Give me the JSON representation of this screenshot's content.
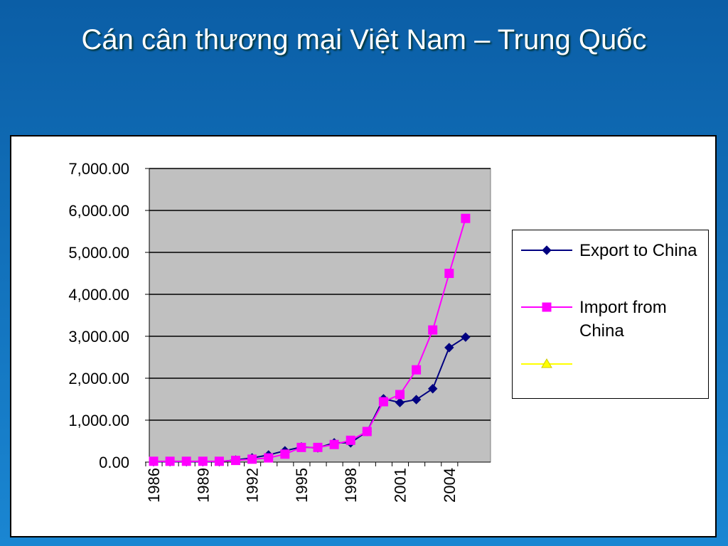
{
  "title": "Cán cân thương mại Việt Nam – Trung Quốc",
  "chart_data": {
    "type": "line",
    "categories": [
      "1986",
      null,
      null,
      "1989",
      null,
      null,
      "1992",
      null,
      null,
      "1995",
      null,
      null,
      "1998",
      null,
      null,
      "2001",
      null,
      null,
      "2004",
      null
    ],
    "series": [
      {
        "name": "Export to China",
        "color": "#000080",
        "marker": "diamond",
        "values": [
          10,
          10,
          10,
          10,
          10,
          50,
          100,
          170,
          270,
          360,
          340,
          460,
          460,
          730,
          1510,
          1420,
          1490,
          1750,
          2730,
          2980
        ]
      },
      {
        "name": "Import from China",
        "color": "#ff00ff",
        "marker": "square",
        "values": [
          20,
          20,
          20,
          20,
          20,
          40,
          70,
          100,
          190,
          350,
          350,
          420,
          520,
          730,
          1440,
          1610,
          2200,
          3150,
          4500,
          5810
        ]
      },
      {
        "name": null,
        "color": "#ffff00",
        "marker": "triangle",
        "values": [
          null,
          null,
          null,
          null,
          null,
          null,
          null,
          null,
          null,
          null,
          null,
          null,
          null,
          null,
          null,
          null,
          null,
          null,
          null,
          null
        ]
      }
    ],
    "ylim": [
      0,
      7000
    ],
    "yticks": [
      {
        "value": 0,
        "label": "0.00"
      },
      {
        "value": 1000,
        "label": "1,000.00"
      },
      {
        "value": 2000,
        "label": "2,000.00"
      },
      {
        "value": 3000,
        "label": "3,000.00"
      },
      {
        "value": 4000,
        "label": "4,000.00"
      },
      {
        "value": 5000,
        "label": "5,000.00"
      },
      {
        "value": 6000,
        "label": "6,000.00"
      },
      {
        "value": 7000,
        "label": "7,000.00"
      }
    ],
    "grid": true,
    "legend": "right"
  }
}
